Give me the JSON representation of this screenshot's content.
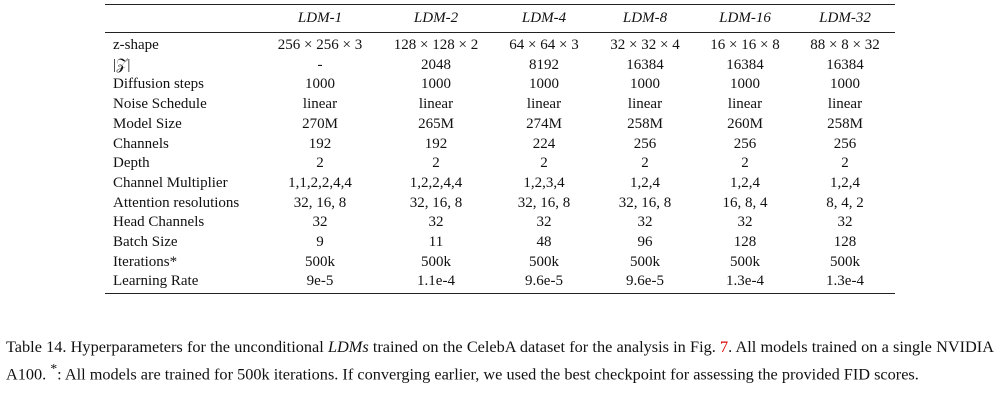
{
  "table": {
    "columns": [
      "LDM-1",
      "LDM-2",
      "LDM-4",
      "LDM-8",
      "LDM-16",
      "LDM-32"
    ],
    "rows": [
      [
        "z-shape",
        "256 × 256 × 3",
        "128 × 128 × 2",
        "64 × 64 × 3",
        "32 × 32 × 4",
        "16 × 16 × 8",
        "88 × 8 × 32"
      ],
      [
        "|𝒵|",
        "-",
        "2048",
        "8192",
        "16384",
        "16384",
        "16384"
      ],
      [
        "Diffusion steps",
        "1000",
        "1000",
        "1000",
        "1000",
        "1000",
        "1000"
      ],
      [
        "Noise Schedule",
        "linear",
        "linear",
        "linear",
        "linear",
        "linear",
        "linear"
      ],
      [
        "Model Size",
        "270M",
        "265M",
        "274M",
        "258M",
        "260M",
        "258M"
      ],
      [
        "Channels",
        "192",
        "192",
        "224",
        "256",
        "256",
        "256"
      ],
      [
        "Depth",
        "2",
        "2",
        "2",
        "2",
        "2",
        "2"
      ],
      [
        "Channel Multiplier",
        "1,1,2,2,4,4",
        "1,2,2,4,4",
        "1,2,3,4",
        "1,2,4",
        "1,2,4",
        "1,2,4"
      ],
      [
        "Attention resolutions",
        "32, 16, 8",
        "32, 16, 8",
        "32, 16, 8",
        "32, 16, 8",
        "16, 8, 4",
        "8, 4, 2"
      ],
      [
        "Head Channels",
        "32",
        "32",
        "32",
        "32",
        "32",
        "32"
      ],
      [
        "Batch Size",
        "9",
        "11",
        "48",
        "96",
        "128",
        "128"
      ],
      [
        "Iterations*",
        "500k",
        "500k",
        "500k",
        "500k",
        "500k",
        "500k"
      ],
      [
        "Learning Rate",
        "9e-5",
        "1.1e-4",
        "9.6e-5",
        "9.6e-5",
        "1.3e-4",
        "1.3e-4"
      ]
    ]
  },
  "caption": {
    "parts": [
      "Table 14.  Hyperparameters for the unconditional ",
      "LDMs",
      " trained on the CelebA dataset for the analysis in Fig. ",
      "7",
      ". All models trained on a single NVIDIA A100. ",
      "*",
      ": All models are trained for 500k iterations. If converging earlier, we used the best checkpoint for assessing the provided FID scores."
    ]
  }
}
